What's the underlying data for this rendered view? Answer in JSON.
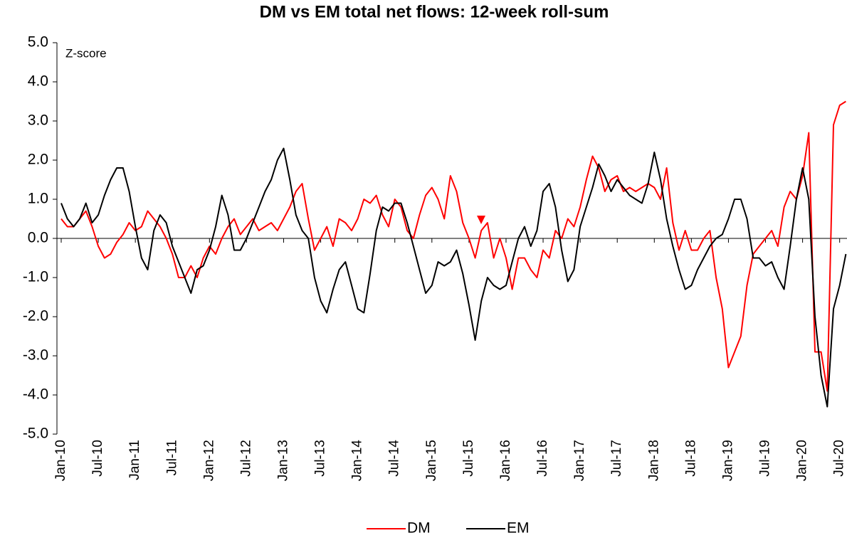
{
  "chart_data": {
    "type": "line",
    "title": "DM vs EM total net flows: 12-week roll-sum",
    "ylabel": "Z-score",
    "categories": [
      "Jan-10",
      null,
      null,
      null,
      null,
      null,
      "Jul-10",
      null,
      null,
      null,
      null,
      null,
      "Jan-11",
      null,
      null,
      null,
      null,
      null,
      "Jul-11",
      null,
      null,
      null,
      null,
      null,
      "Jan-12",
      null,
      null,
      null,
      null,
      null,
      "Jul-12",
      null,
      null,
      null,
      null,
      null,
      "Jan-13",
      null,
      null,
      null,
      null,
      null,
      "Jul-13",
      null,
      null,
      null,
      null,
      null,
      "Jan-14",
      null,
      null,
      null,
      null,
      null,
      "Jul-14",
      null,
      null,
      null,
      null,
      null,
      "Jan-15",
      null,
      null,
      null,
      null,
      null,
      "Jul-15",
      null,
      null,
      null,
      null,
      null,
      "Jan-16",
      null,
      null,
      null,
      null,
      null,
      "Jul-16",
      null,
      null,
      null,
      null,
      null,
      "Jan-17",
      null,
      null,
      null,
      null,
      null,
      "Jul-17",
      null,
      null,
      null,
      null,
      null,
      "Jan-18",
      null,
      null,
      null,
      null,
      null,
      "Jul-18",
      null,
      null,
      null,
      null,
      null,
      "Jan-19",
      null,
      null,
      null,
      null,
      null,
      "Jul-19",
      null,
      null,
      null,
      null,
      null,
      "Jan-20",
      null,
      null,
      null,
      null,
      null,
      "Jul-20",
      null
    ],
    "series": [
      {
        "name": "DM",
        "color": "#ff0000",
        "values": [
          0.5,
          0.3,
          0.3,
          0.5,
          0.7,
          0.3,
          -0.2,
          -0.5,
          -0.4,
          -0.1,
          0.1,
          0.4,
          0.2,
          0.3,
          0.7,
          0.5,
          0.3,
          0.0,
          -0.4,
          -1.0,
          -1.0,
          -0.7,
          -1.0,
          -0.5,
          -0.2,
          -0.4,
          0.0,
          0.3,
          0.5,
          0.1,
          0.3,
          0.5,
          0.2,
          0.3,
          0.4,
          0.2,
          0.5,
          0.8,
          1.2,
          1.4,
          0.5,
          -0.3,
          0.0,
          0.3,
          -0.2,
          0.5,
          0.4,
          0.2,
          0.5,
          1.0,
          0.9,
          1.1,
          0.6,
          0.3,
          1.0,
          0.8,
          0.2,
          0.0,
          0.6,
          1.1,
          1.3,
          1.0,
          0.5,
          1.6,
          1.2,
          0.4,
          0.0,
          -0.5,
          0.2,
          0.4,
          -0.5,
          0.0,
          -0.5,
          -1.3,
          -0.5,
          -0.5,
          -0.8,
          -1.0,
          -0.3,
          -0.5,
          0.2,
          0.0,
          0.5,
          0.3,
          0.8,
          1.5,
          2.1,
          1.8,
          1.2,
          1.5,
          1.6,
          1.2,
          1.3,
          1.2,
          1.3,
          1.4,
          1.3,
          1.0,
          1.8,
          0.4,
          -0.3,
          0.2,
          -0.3,
          -0.3,
          0.0,
          0.2,
          -1.0,
          -1.8,
          -3.3,
          -2.9,
          -2.5,
          -1.2,
          -0.4,
          -0.2,
          0.0,
          0.2,
          -0.2,
          0.8,
          1.2,
          1.0,
          1.6,
          2.7,
          -2.9,
          -2.9,
          -3.9,
          2.9,
          3.4,
          3.5
        ]
      },
      {
        "name": "EM",
        "color": "#000000",
        "values": [
          0.9,
          0.5,
          0.3,
          0.5,
          0.9,
          0.4,
          0.6,
          1.1,
          1.5,
          1.8,
          1.8,
          1.2,
          0.3,
          -0.5,
          -0.8,
          0.2,
          0.6,
          0.4,
          -0.2,
          -0.6,
          -1.0,
          -1.4,
          -0.8,
          -0.7,
          -0.3,
          0.3,
          1.1,
          0.6,
          -0.3,
          -0.3,
          0.0,
          0.4,
          0.8,
          1.2,
          1.5,
          2.0,
          2.3,
          1.5,
          0.6,
          0.2,
          0.0,
          -1.0,
          -1.6,
          -1.9,
          -1.3,
          -0.8,
          -0.6,
          -1.2,
          -1.8,
          -1.9,
          -0.9,
          0.2,
          0.8,
          0.7,
          0.9,
          0.9,
          0.4,
          -0.2,
          -0.8,
          -1.4,
          -1.2,
          -0.6,
          -0.7,
          -0.6,
          -0.3,
          -0.9,
          -1.7,
          -2.6,
          -1.6,
          -1.0,
          -1.2,
          -1.3,
          -1.2,
          -0.6,
          0.0,
          0.3,
          -0.2,
          0.2,
          1.2,
          1.4,
          0.8,
          -0.3,
          -1.1,
          -0.8,
          0.3,
          0.8,
          1.3,
          1.9,
          1.6,
          1.2,
          1.5,
          1.3,
          1.1,
          1.0,
          0.9,
          1.4,
          2.2,
          1.5,
          0.5,
          -0.2,
          -0.8,
          -1.3,
          -1.2,
          -0.8,
          -0.5,
          -0.2,
          0.0,
          0.1,
          0.5,
          1.0,
          1.0,
          0.5,
          -0.5,
          -0.5,
          -0.7,
          -0.6,
          -1.0,
          -1.3,
          -0.2,
          1.0,
          1.8,
          1.0,
          -2.0,
          -3.5,
          -4.3,
          -1.8,
          -1.2,
          -0.4
        ]
      }
    ],
    "ylim": [
      -5,
      5
    ],
    "yticks": [
      {
        "value": -5,
        "label": "-5.0"
      },
      {
        "value": -4,
        "label": "-4.0"
      },
      {
        "value": -3,
        "label": "-3.0"
      },
      {
        "value": -2,
        "label": "-2.0"
      },
      {
        "value": -1,
        "label": "-1.0"
      },
      {
        "value": 0,
        "label": "0.0"
      },
      {
        "value": 1,
        "label": "1.0"
      },
      {
        "value": 2,
        "label": "2.0"
      },
      {
        "value": 3,
        "label": "3.0"
      },
      {
        "value": 4,
        "label": "4.0"
      },
      {
        "value": 5,
        "label": "5.0"
      }
    ],
    "grid": false,
    "legend": "bottom"
  }
}
